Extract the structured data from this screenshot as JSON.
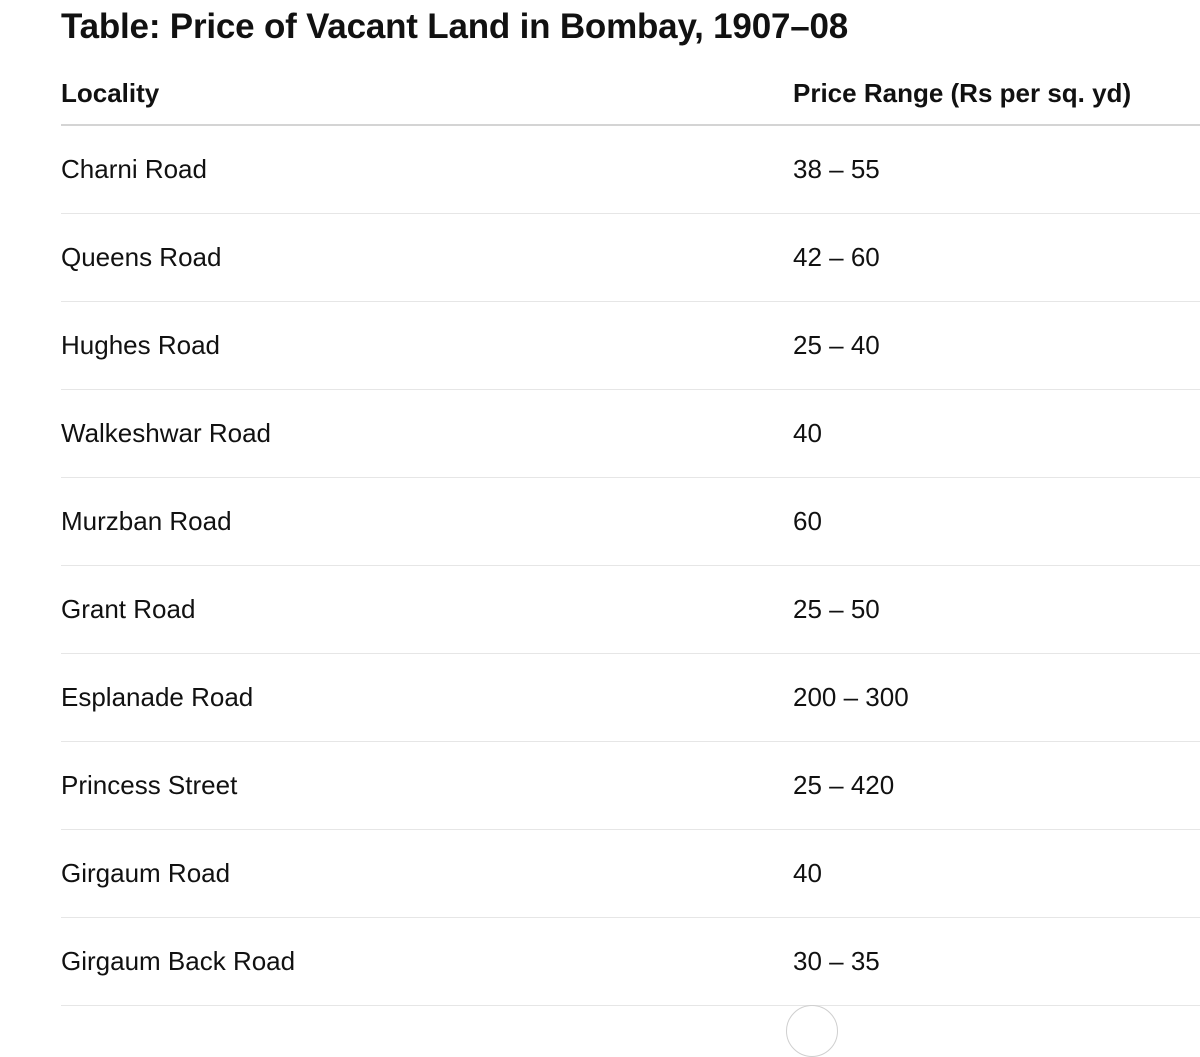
{
  "title": "Table: Price of Vacant Land in Bombay, 1907–08",
  "table": {
    "headers": {
      "locality": "Locality",
      "price": "Price Range (Rs per sq. yd)"
    },
    "rows": [
      {
        "locality": "Charni Road",
        "price": "38 – 55"
      },
      {
        "locality": "Queens Road",
        "price": "42 – 60"
      },
      {
        "locality": "Hughes Road",
        "price": "25 – 40"
      },
      {
        "locality": "Walkeshwar Road",
        "price": "40"
      },
      {
        "locality": "Murzban Road",
        "price": "60"
      },
      {
        "locality": "Grant Road",
        "price": "25 – 50"
      },
      {
        "locality": "Esplanade Road",
        "price": "200 – 300"
      },
      {
        "locality": "Princess Street",
        "price": "25 – 420"
      },
      {
        "locality": "Girgaum Road",
        "price": "40"
      },
      {
        "locality": "Girgaum Back Road",
        "price": "30 – 35"
      }
    ]
  },
  "chart_data": {
    "type": "table",
    "title": "Table: Price of Vacant Land in Bombay, 1907–08",
    "columns": [
      "Locality",
      "Price Range (Rs per sq. yd)"
    ],
    "rows": [
      [
        "Charni Road",
        "38 – 55"
      ],
      [
        "Queens Road",
        "42 – 60"
      ],
      [
        "Hughes Road",
        "25 – 40"
      ],
      [
        "Walkeshwar Road",
        "40"
      ],
      [
        "Murzban Road",
        "60"
      ],
      [
        "Grant Road",
        "25 – 50"
      ],
      [
        "Esplanade Road",
        "200 – 300"
      ],
      [
        "Princess Street",
        "25 – 420"
      ],
      [
        "Girgaum Road",
        "40"
      ],
      [
        "Girgaum Back Road",
        "30 – 35"
      ]
    ]
  }
}
